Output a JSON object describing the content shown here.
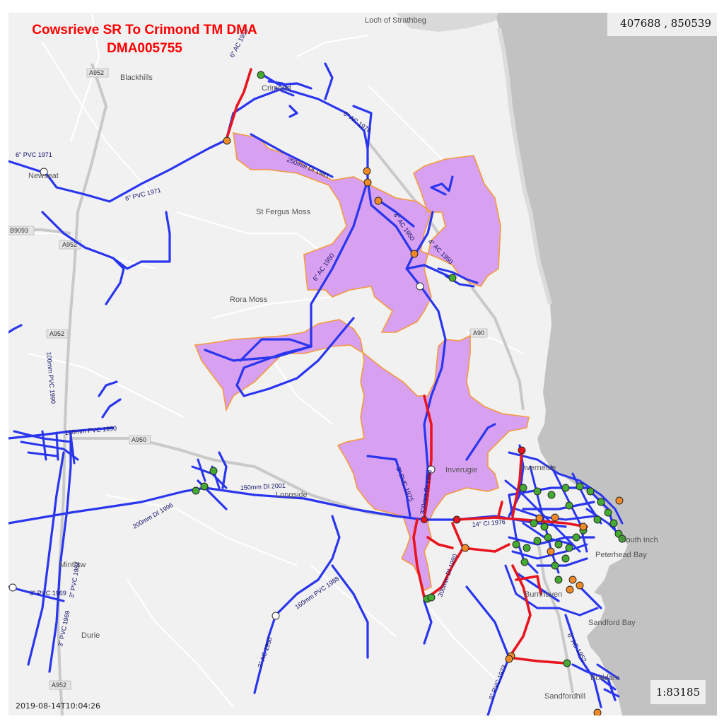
{
  "title": {
    "line1": "Cowsrieve SR To Crimond TM DMA",
    "line2": "DMA005755"
  },
  "coordinates": "407688 , 850539",
  "scale": "1:83185",
  "timestamp": "2019-08-14T10:04:26",
  "colors": {
    "sea": "#c2c2c2",
    "land": "#f1f1f1",
    "dma_fill": "#d8a0f0",
    "dma_border": "#f39a3c",
    "main_blue": "#2a36ee",
    "main_red": "#e8141e",
    "valve_green": "#44aa33",
    "valve_orange": "#f08a28",
    "valve_white": "#ffffff",
    "title_red": "#ff0000"
  },
  "place_labels": [
    "Loch of Strathbeg",
    "Blackhills",
    "St Fergus Moss",
    "Rora Moss",
    "Inverugie",
    "Peterhead Bay",
    "Sandford Bay",
    "Sandfordhill",
    "Durie",
    "Mintlaw",
    "South Inch",
    "Longside",
    "Invernettie",
    "Boddam",
    "Crimond",
    "Newseat",
    "Burnhaven"
  ],
  "road_labels": [
    "A952",
    "A90",
    "A950",
    "B9093",
    "A952",
    "A952",
    "A952"
  ],
  "pipe_labels": [
    "6\" AC 1976",
    "250mm DI 1981",
    "6\" PVC 1971",
    "6\" PVC 1971",
    "4\" AC 1950",
    "4\" AC 1950",
    "6\" AC 1950",
    "100mm PVC 1990",
    "100mm PVC 1990",
    "150mm DI 2001",
    "200mm DI 1996",
    "3\" PVC 1975",
    "300mm DI 1994",
    "14\" CI 1976",
    "300mm DI 1990",
    "160mm PVC 1988",
    "2\" AC 1950",
    "3\" PVC 1969",
    "3\" PVC 1969",
    "3\" PVC 1984",
    "8\" PVC 1973",
    "6\" AC 1952",
    "6\" AC 1958"
  ]
}
